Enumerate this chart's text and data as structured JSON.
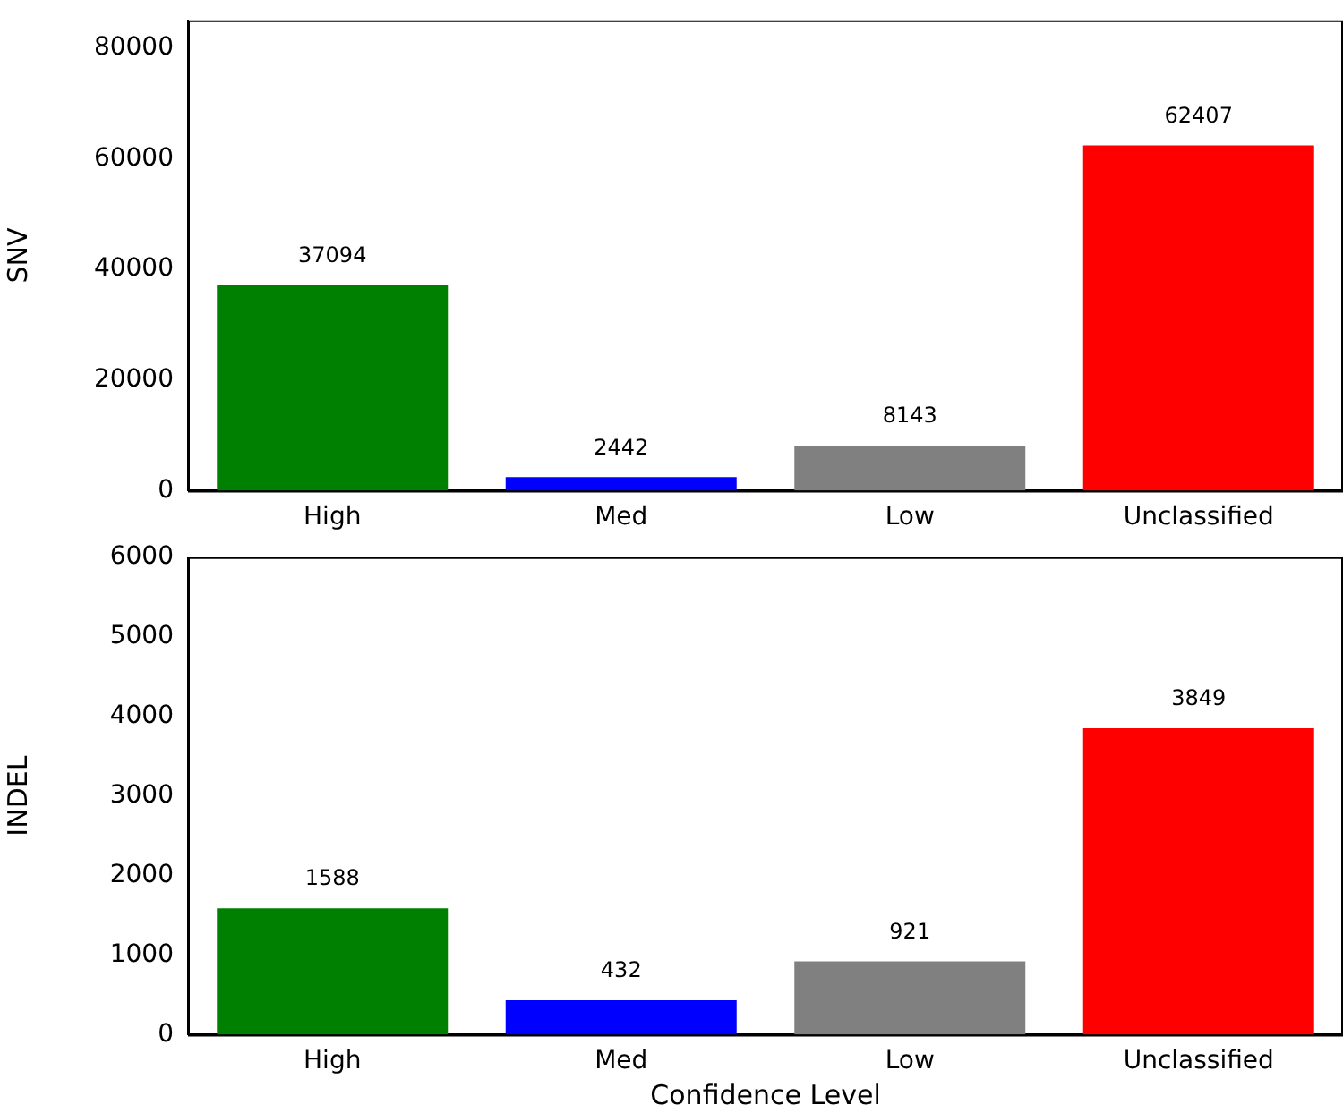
{
  "chart_data": [
    {
      "type": "bar",
      "ylabel": "SNV",
      "categories": [
        "High",
        "Med",
        "Low",
        "Unclassified"
      ],
      "values": [
        37094,
        2442,
        8143,
        62407
      ],
      "colors": [
        "#008000",
        "#0000ff",
        "#808080",
        "#ff0000"
      ],
      "ylim": [
        0,
        85000
      ],
      "yticks": [
        0,
        20000,
        40000,
        60000,
        80000
      ],
      "data_labels": true,
      "grid": false,
      "legend": false
    },
    {
      "type": "bar",
      "ylabel": "INDEL",
      "xlabel": "Confidence Level",
      "categories": [
        "High",
        "Med",
        "Low",
        "Unclassified"
      ],
      "values": [
        1588,
        432,
        921,
        3849
      ],
      "colors": [
        "#008000",
        "#0000ff",
        "#808080",
        "#ff0000"
      ],
      "ylim": [
        0,
        6000
      ],
      "yticks": [
        0,
        1000,
        2000,
        3000,
        4000,
        5000,
        6000
      ],
      "data_labels": true,
      "grid": false,
      "legend": false
    }
  ]
}
